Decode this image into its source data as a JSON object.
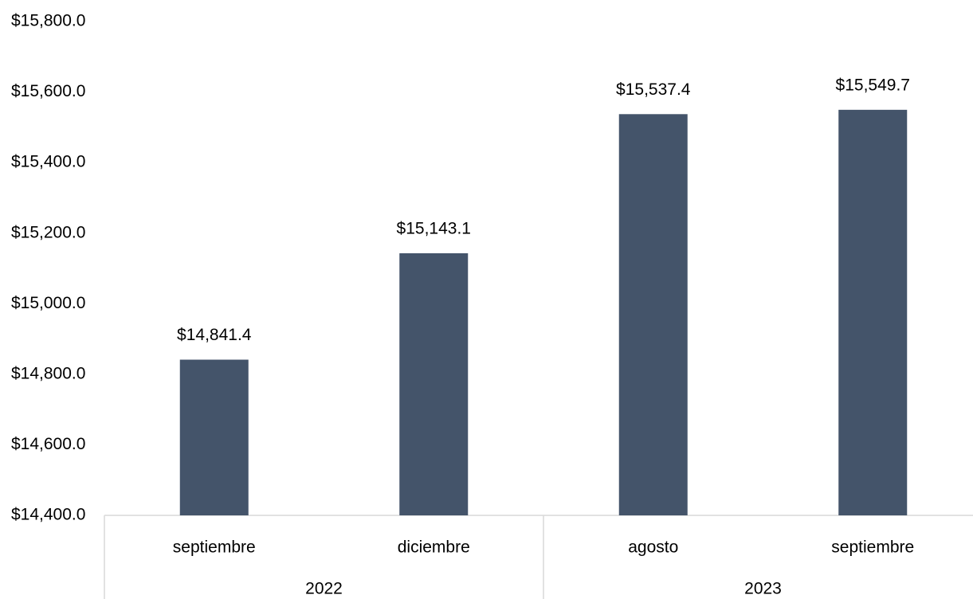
{
  "chart_data": {
    "type": "bar",
    "groups": [
      {
        "name": "2022",
        "categories": [
          "septiembre",
          "diciembre"
        ]
      },
      {
        "name": "2023",
        "categories": [
          "agosto",
          "septiembre"
        ]
      }
    ],
    "values": [
      14841.4,
      15143.1,
      15537.4,
      15549.7
    ],
    "value_labels": [
      "$14,841.4",
      "$15,143.1",
      "$15,537.4",
      "$15,549.7"
    ],
    "color": "#44546a",
    "ylim": [
      14400,
      15800
    ],
    "yticks": [
      {
        "value": 14400,
        "label": "$14,400.0"
      },
      {
        "value": 14600,
        "label": "$14,600.0"
      },
      {
        "value": 14800,
        "label": "$14,800.0"
      },
      {
        "value": 15000,
        "label": "$15,000.0"
      },
      {
        "value": 15200,
        "label": "$15,200.0"
      },
      {
        "value": 15400,
        "label": "$15,400.0"
      },
      {
        "value": 15600,
        "label": "$15,600.0"
      },
      {
        "value": 15800,
        "label": "$15,800.0"
      }
    ],
    "grid": false
  }
}
